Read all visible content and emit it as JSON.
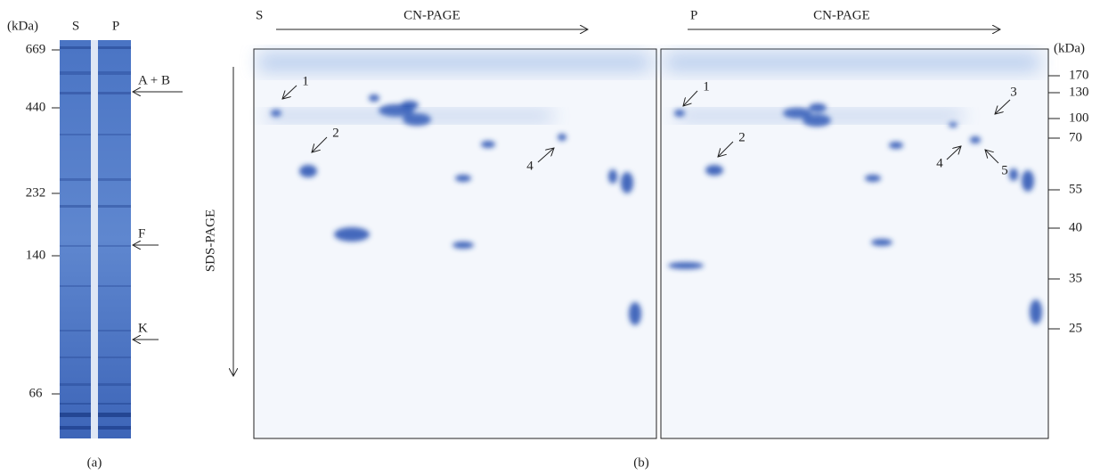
{
  "panel_a": {
    "unit": "(kDa)",
    "lanes": [
      "S",
      "P"
    ],
    "markers": [
      "669",
      "440",
      "232",
      "140",
      "66"
    ],
    "arrows": [
      "A + B",
      "F",
      "K"
    ],
    "caption": "(a)"
  },
  "panel_b": {
    "gels": [
      {
        "sample": "S",
        "axis": "CN-PAGE",
        "spots": [
          "1",
          "2",
          "4"
        ]
      },
      {
        "sample": "P",
        "axis": "CN-PAGE",
        "spots": [
          "1",
          "2",
          "3",
          "4",
          "5"
        ]
      }
    ],
    "vertical_axis": "SDS-PAGE",
    "unit": "(kDa)",
    "markers": [
      "170",
      "130",
      "100",
      "70",
      "55",
      "40",
      "35",
      "25"
    ],
    "caption": "(b)"
  }
}
